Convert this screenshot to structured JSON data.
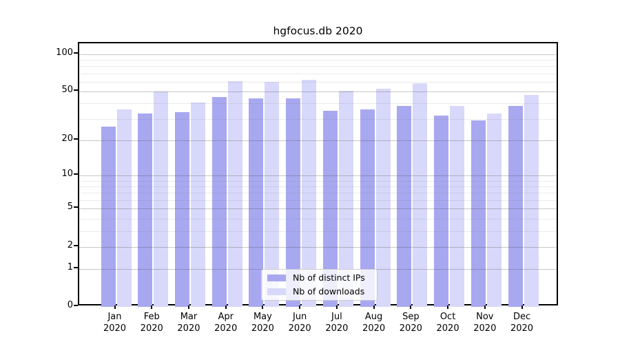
{
  "title": "hgfocus.db 2020",
  "chart_data": {
    "type": "bar",
    "title": "hgfocus.db 2020",
    "categories": [
      "Jan",
      "Feb",
      "Mar",
      "Apr",
      "May",
      "Jun",
      "Jul",
      "Aug",
      "Sep",
      "Oct",
      "Nov",
      "Dec"
    ],
    "category_year": "2020",
    "series": [
      {
        "name": "Nb of distinct IPs",
        "color": "#a8a8f0",
        "values": [
          26,
          33,
          34,
          45,
          44,
          44,
          35,
          36,
          38,
          32,
          29,
          38
        ]
      },
      {
        "name": "Nb of downloads",
        "color": "#d8d8fa",
        "values": [
          36,
          50,
          41,
          61,
          60,
          62,
          51,
          53,
          58,
          38,
          33,
          47
        ]
      }
    ],
    "yscale": "log1p",
    "yticks": [
      0,
      1,
      2,
      5,
      10,
      20,
      50,
      100
    ],
    "ylim": [
      0,
      122
    ],
    "grid": true,
    "legend_position": "lower center"
  },
  "colors": {
    "bar_distinct_ips": "#a8a8f0",
    "bar_downloads": "#d8d8fa",
    "axis": "#000000",
    "grid_major": "#c8c8c8",
    "grid_minor": "#ebebeb",
    "legend_border": "#cccccc",
    "background": "#ffffff"
  }
}
